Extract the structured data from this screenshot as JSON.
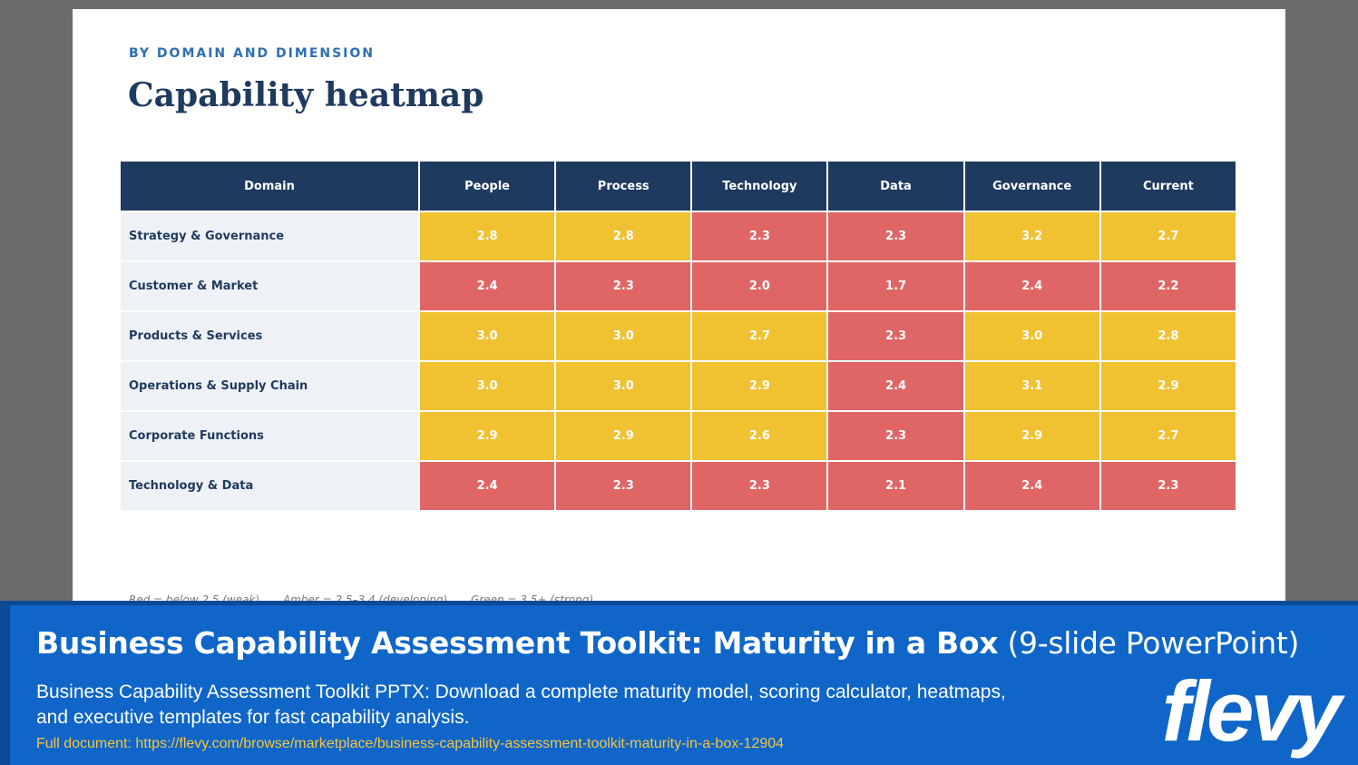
{
  "slide": {
    "eyebrow": "BY DOMAIN AND DIMENSION",
    "title": "Capability heatmap",
    "table": {
      "headers": [
        "Domain",
        "People",
        "Process",
        "Technology",
        "Data",
        "Governance",
        "Current"
      ],
      "rows": [
        {
          "domain": "Strategy & Governance",
          "values": [
            "2.8",
            "2.8",
            "2.3",
            "2.3",
            "3.2",
            "2.7"
          ],
          "levels": [
            "amber",
            "amber",
            "red",
            "red",
            "amber",
            "amber"
          ]
        },
        {
          "domain": "Customer & Market",
          "values": [
            "2.4",
            "2.3",
            "2.0",
            "1.7",
            "2.4",
            "2.2"
          ],
          "levels": [
            "red",
            "red",
            "red",
            "red",
            "red",
            "red"
          ]
        },
        {
          "domain": "Products & Services",
          "values": [
            "3.0",
            "3.0",
            "2.7",
            "2.3",
            "3.0",
            "2.8"
          ],
          "levels": [
            "amber",
            "amber",
            "amber",
            "red",
            "amber",
            "amber"
          ]
        },
        {
          "domain": "Operations & Supply Chain",
          "values": [
            "3.0",
            "3.0",
            "2.9",
            "2.4",
            "3.1",
            "2.9"
          ],
          "levels": [
            "amber",
            "amber",
            "amber",
            "red",
            "amber",
            "amber"
          ]
        },
        {
          "domain": "Corporate Functions",
          "values": [
            "2.9",
            "2.9",
            "2.6",
            "2.3",
            "2.9",
            "2.7"
          ],
          "levels": [
            "amber",
            "amber",
            "amber",
            "red",
            "amber",
            "amber"
          ]
        },
        {
          "domain": "Technology & Data",
          "values": [
            "2.4",
            "2.3",
            "2.3",
            "2.1",
            "2.4",
            "2.3"
          ],
          "levels": [
            "red",
            "red",
            "red",
            "red",
            "red",
            "red"
          ]
        }
      ]
    },
    "legend": [
      "Red = below 2.5 (weak)",
      "Amber = 2.5–3.4 (developing)",
      "Green = 3.5+ (strong)"
    ]
  },
  "colors": {
    "header": "#1f3a5f",
    "amber": "#f0c231",
    "red": "#e06666",
    "banner": "#0f66c8",
    "link": "#f5c542"
  },
  "banner": {
    "title_bold": "Business Capability Assessment Toolkit: Maturity in a Box",
    "title_thin": " (9-slide PowerPoint)",
    "description": "Business Capability Assessment Toolkit PPTX: Download a complete maturity model, scoring calculator, heatmaps, and executive templates for fast capability analysis.",
    "link": "Full document: https://flevy.com/browse/marketplace/business-capability-assessment-toolkit-maturity-in-a-box-12904",
    "logo": "flevy"
  }
}
